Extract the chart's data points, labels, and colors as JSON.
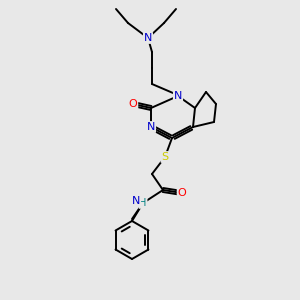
{
  "bg_color": "#e8e8e8",
  "line_color": "#000000",
  "atom_colors": {
    "N": "#0000cc",
    "O": "#ff0000",
    "S": "#cccc00",
    "H": "#008080",
    "C": "#000000"
  },
  "figsize": [
    3.0,
    3.0
  ],
  "dpi": 100
}
